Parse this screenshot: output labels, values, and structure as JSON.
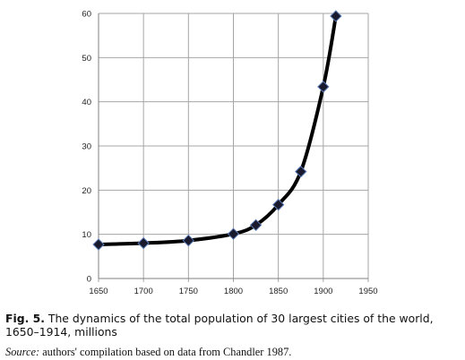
{
  "chart_data": {
    "type": "line",
    "title": "",
    "xlabel": "",
    "ylabel": "",
    "x": [
      1650,
      1700,
      1750,
      1800,
      1825,
      1850,
      1875,
      1900,
      1914
    ],
    "series": [
      {
        "values": [
          7.7,
          8.0,
          8.6,
          10.1,
          12.1,
          16.7,
          24.2,
          43.4,
          59.4
        ]
      }
    ],
    "xlim": [
      1650,
      1950
    ],
    "ylim": [
      0,
      60
    ],
    "xticks": [
      "1650",
      "1700",
      "1750",
      "1800",
      "1850",
      "1900",
      "1950"
    ],
    "yticks": [
      "0",
      "10",
      "20",
      "30",
      "40",
      "50",
      "60"
    ],
    "grid": "both",
    "legend": "none",
    "marker": "diamond",
    "colors": {
      "line": "#000000",
      "marker_fill": "#1a1a2e",
      "marker_edge": "#5a7ab5",
      "grid": "#a6a6a6"
    }
  },
  "caption": {
    "label": "Fig. 5.",
    "text": "The dynamics of the total population of 30 largest cities of the world, 1650–1914, millions",
    "source_label": "Source:",
    "source_text": "authors' compilation based on data from Chandler 1987."
  }
}
